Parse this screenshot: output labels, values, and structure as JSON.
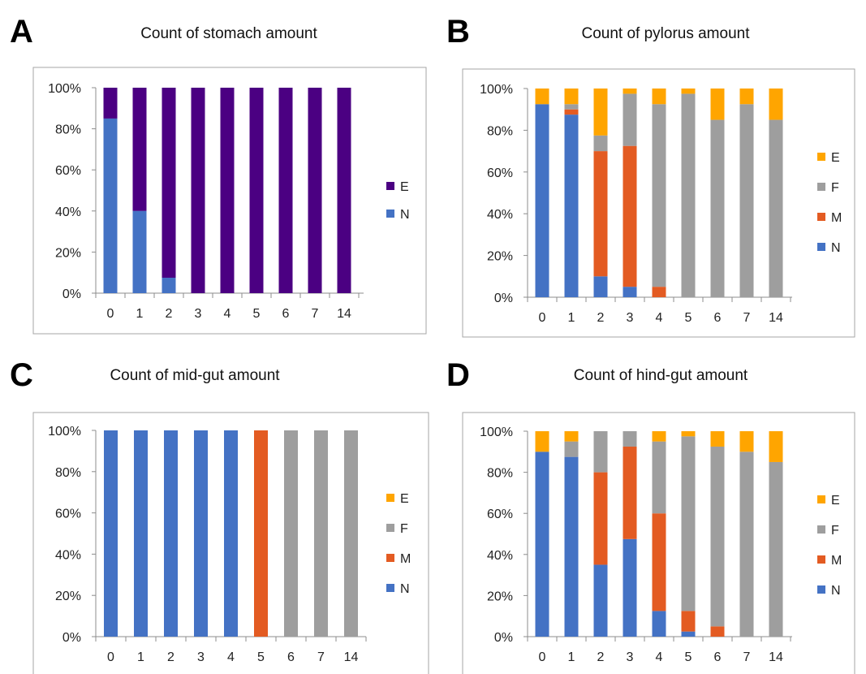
{
  "colors": {
    "E_stomach": "#4B0082",
    "N": "#4472C4",
    "M": "#E35B22",
    "F": "#9E9E9E",
    "E": "#FFA500"
  },
  "y_tick_labels": [
    "0%",
    "20%",
    "40%",
    "60%",
    "80%",
    "100%"
  ],
  "chart_data": [
    {
      "panel_letter": "A",
      "type": "bar",
      "stacked": "percent",
      "title": "Count of stomach amount",
      "categories": [
        "0",
        "1",
        "2",
        "3",
        "4",
        "5",
        "6",
        "7",
        "14"
      ],
      "ylim": [
        0,
        100
      ],
      "legend_position": "right",
      "series": [
        {
          "name": "N",
          "color_key": "N",
          "values": [
            85,
            40,
            7.5,
            0,
            0,
            0,
            0,
            0,
            0
          ]
        },
        {
          "name": "E",
          "color_key": "E_stomach",
          "values": [
            15,
            60,
            92.5,
            100,
            100,
            100,
            100,
            100,
            100
          ]
        }
      ]
    },
    {
      "panel_letter": "B",
      "type": "bar",
      "stacked": "percent",
      "title": "Count of pylorus amount",
      "categories": [
        "0",
        "1",
        "2",
        "3",
        "4",
        "5",
        "6",
        "7",
        "14"
      ],
      "ylim": [
        0,
        100
      ],
      "legend_position": "right",
      "series": [
        {
          "name": "N",
          "color_key": "N",
          "values": [
            92.5,
            87.5,
            10,
            5,
            0,
            0,
            0,
            0,
            0
          ]
        },
        {
          "name": "M",
          "color_key": "M",
          "values": [
            0,
            2.5,
            60,
            67.5,
            5,
            0,
            0,
            0,
            0
          ]
        },
        {
          "name": "F",
          "color_key": "F",
          "values": [
            0,
            2.5,
            7.5,
            25,
            87.5,
            97.5,
            85,
            92.5,
            85
          ]
        },
        {
          "name": "E",
          "color_key": "E",
          "values": [
            7.5,
            7.5,
            22.5,
            2.5,
            7.5,
            2.5,
            15,
            7.5,
            15
          ]
        }
      ]
    },
    {
      "panel_letter": "C",
      "type": "bar",
      "stacked": "percent",
      "title": "Count of mid-gut amount",
      "categories": [
        "0",
        "1",
        "2",
        "3",
        "4",
        "5",
        "6",
        "7",
        "14"
      ],
      "ylim": [
        0,
        100
      ],
      "legend_position": "right",
      "series": [
        {
          "name": "N",
          "color_key": "N",
          "values": [
            100,
            100,
            100,
            100,
            100,
            0,
            0,
            0,
            0
          ]
        },
        {
          "name": "M",
          "color_key": "M",
          "values": [
            0,
            0,
            0,
            0,
            0,
            100,
            0,
            0,
            0
          ]
        },
        {
          "name": "F",
          "color_key": "F",
          "values": [
            0,
            0,
            0,
            0,
            0,
            0,
            100,
            100,
            100
          ]
        },
        {
          "name": "E",
          "color_key": "E",
          "values": [
            0,
            0,
            0,
            0,
            0,
            0,
            0,
            0,
            0
          ]
        }
      ]
    },
    {
      "panel_letter": "D",
      "type": "bar",
      "stacked": "percent",
      "title": "Count of hind-gut amount",
      "categories": [
        "0",
        "1",
        "2",
        "3",
        "4",
        "5",
        "6",
        "7",
        "14"
      ],
      "ylim": [
        0,
        100
      ],
      "legend_position": "right",
      "series": [
        {
          "name": "N",
          "color_key": "N",
          "values": [
            90,
            87.5,
            35,
            47.5,
            12.5,
            2.5,
            0,
            0,
            0
          ]
        },
        {
          "name": "M",
          "color_key": "M",
          "values": [
            0,
            0,
            45,
            45,
            47.5,
            10,
            5,
            0,
            0
          ]
        },
        {
          "name": "F",
          "color_key": "F",
          "values": [
            0,
            7.5,
            20,
            7.5,
            35,
            85,
            87.5,
            90,
            85
          ]
        },
        {
          "name": "E",
          "color_key": "E",
          "values": [
            10,
            5,
            0,
            0,
            5,
            2.5,
            7.5,
            10,
            15
          ]
        }
      ]
    }
  ]
}
